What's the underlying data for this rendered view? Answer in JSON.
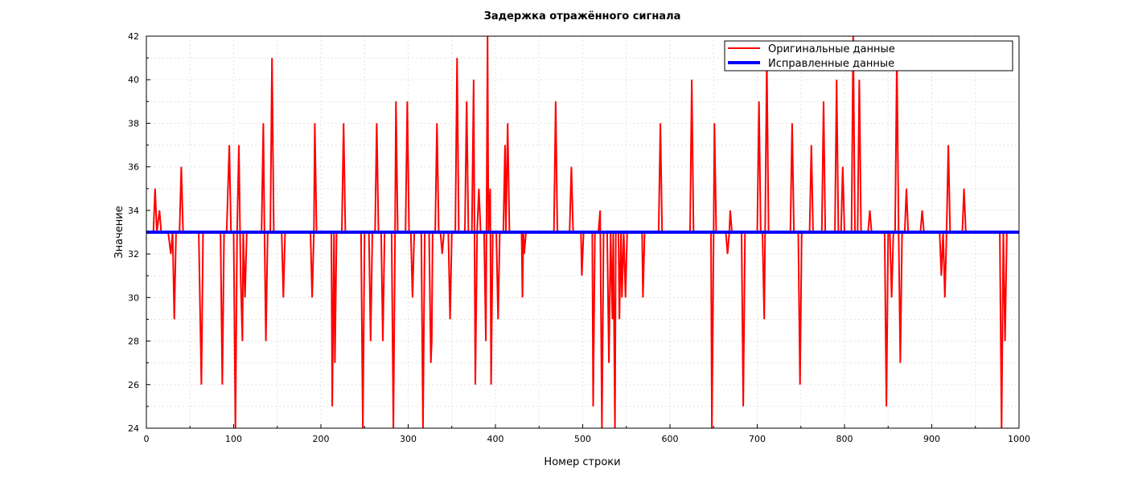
{
  "chart_data": {
    "type": "line",
    "title": "Задержка отражённого сигнала",
    "xlabel": "Номер строки",
    "ylabel": "Значение",
    "xlim": [
      0,
      1000
    ],
    "ylim": [
      24,
      42
    ],
    "xticks": [
      0,
      100,
      200,
      300,
      400,
      500,
      600,
      700,
      800,
      900,
      1000
    ],
    "yticks": [
      24,
      26,
      28,
      30,
      32,
      34,
      36,
      38,
      40,
      42
    ],
    "xtick_labels": [
      "0",
      "100",
      "200",
      "300",
      "400",
      "500",
      "600",
      "700",
      "800",
      "900",
      "1000"
    ],
    "ytick_labels": [
      "24",
      "26",
      "28",
      "30",
      "32",
      "34",
      "36",
      "38",
      "40",
      "42"
    ],
    "grid": true,
    "legend_position": "top-right",
    "series": [
      {
        "name": "Оригинальные данные",
        "color": "#ff0000",
        "points": [
          [
            0,
            33
          ],
          [
            8,
            33
          ],
          [
            10,
            35
          ],
          [
            12,
            33
          ],
          [
            15,
            34
          ],
          [
            17,
            33
          ],
          [
            25,
            33
          ],
          [
            28,
            32
          ],
          [
            30,
            33
          ],
          [
            32,
            29
          ],
          [
            34,
            33
          ],
          [
            38,
            33
          ],
          [
            40,
            36
          ],
          [
            42,
            33
          ],
          [
            60,
            33
          ],
          [
            63,
            26
          ],
          [
            65,
            33
          ],
          [
            85,
            33
          ],
          [
            87,
            26
          ],
          [
            89,
            33
          ],
          [
            92,
            33
          ],
          [
            95,
            37
          ],
          [
            97,
            33
          ],
          [
            100,
            33
          ],
          [
            102,
            24
          ],
          [
            104,
            33
          ],
          [
            106,
            37
          ],
          [
            108,
            31
          ],
          [
            110,
            28
          ],
          [
            111,
            33
          ],
          [
            113,
            30
          ],
          [
            115,
            33
          ],
          [
            132,
            33
          ],
          [
            134,
            38
          ],
          [
            135,
            34
          ],
          [
            137,
            28
          ],
          [
            139,
            33
          ],
          [
            142,
            33
          ],
          [
            144,
            41
          ],
          [
            146,
            33
          ],
          [
            155,
            33
          ],
          [
            157,
            30
          ],
          [
            159,
            33
          ],
          [
            188,
            33
          ],
          [
            190,
            30
          ],
          [
            192,
            33
          ],
          [
            193,
            38
          ],
          [
            195,
            33
          ],
          [
            212,
            33
          ],
          [
            213,
            25
          ],
          [
            215,
            33
          ],
          [
            216,
            27
          ],
          [
            218,
            33
          ],
          [
            224,
            33
          ],
          [
            226,
            38
          ],
          [
            228,
            33
          ],
          [
            246,
            33
          ],
          [
            248,
            24
          ],
          [
            250,
            33
          ],
          [
            255,
            33
          ],
          [
            257,
            28
          ],
          [
            259,
            33
          ],
          [
            262,
            33
          ],
          [
            264,
            38
          ],
          [
            266,
            33
          ],
          [
            269,
            33
          ],
          [
            271,
            28
          ],
          [
            273,
            33
          ],
          [
            281,
            33
          ],
          [
            283,
            24
          ],
          [
            285,
            33
          ],
          [
            286,
            39
          ],
          [
            288,
            33
          ],
          [
            297,
            33
          ],
          [
            299,
            39
          ],
          [
            301,
            33
          ],
          [
            303,
            33
          ],
          [
            305,
            30
          ],
          [
            307,
            33
          ],
          [
            315,
            33
          ],
          [
            317,
            24
          ],
          [
            319,
            33
          ],
          [
            324,
            33
          ],
          [
            326,
            27
          ],
          [
            327,
            28
          ],
          [
            328,
            33
          ],
          [
            331,
            33
          ],
          [
            333,
            38
          ],
          [
            335,
            33
          ],
          [
            337,
            33
          ],
          [
            339,
            32
          ],
          [
            341,
            33
          ],
          [
            346,
            33
          ],
          [
            348,
            29
          ],
          [
            350,
            33
          ],
          [
            354,
            33
          ],
          [
            356,
            41
          ],
          [
            358,
            33
          ],
          [
            365,
            33
          ],
          [
            367,
            39
          ],
          [
            369,
            33
          ],
          [
            373,
            33
          ],
          [
            375,
            40
          ],
          [
            377,
            26
          ],
          [
            379,
            33
          ],
          [
            381,
            35
          ],
          [
            383,
            33
          ],
          [
            387,
            33
          ],
          [
            389,
            28
          ],
          [
            391,
            42
          ],
          [
            392,
            33
          ],
          [
            394,
            35
          ],
          [
            395,
            26
          ],
          [
            397,
            33
          ],
          [
            401,
            33
          ],
          [
            403,
            29
          ],
          [
            405,
            33
          ],
          [
            409,
            33
          ],
          [
            411,
            37
          ],
          [
            412,
            33
          ],
          [
            414,
            38
          ],
          [
            416,
            33
          ],
          [
            430,
            33
          ],
          [
            431,
            30
          ],
          [
            432,
            33
          ],
          [
            433,
            32
          ],
          [
            435,
            33
          ],
          [
            467,
            33
          ],
          [
            469,
            39
          ],
          [
            471,
            33
          ],
          [
            485,
            33
          ],
          [
            487,
            36
          ],
          [
            489,
            33
          ],
          [
            498,
            33
          ],
          [
            499,
            31
          ],
          [
            501,
            33
          ],
          [
            511,
            33
          ],
          [
            512,
            25
          ],
          [
            514,
            33
          ],
          [
            518,
            33
          ],
          [
            520,
            34
          ],
          [
            522,
            24
          ],
          [
            524,
            33
          ],
          [
            528,
            33
          ],
          [
            530,
            27
          ],
          [
            532,
            33
          ],
          [
            534,
            29
          ],
          [
            535,
            33
          ],
          [
            537,
            24
          ],
          [
            538,
            33
          ],
          [
            541,
            33
          ],
          [
            542,
            29
          ],
          [
            544,
            33
          ],
          [
            545,
            30
          ],
          [
            547,
            33
          ],
          [
            549,
            30
          ],
          [
            551,
            33
          ],
          [
            568,
            33
          ],
          [
            569,
            30
          ],
          [
            571,
            33
          ],
          [
            587,
            33
          ],
          [
            589,
            38
          ],
          [
            591,
            33
          ],
          [
            623,
            33
          ],
          [
            625,
            40
          ],
          [
            627,
            33
          ],
          [
            647,
            33
          ],
          [
            648,
            24
          ],
          [
            650,
            33
          ],
          [
            651,
            38
          ],
          [
            653,
            33
          ],
          [
            664,
            33
          ],
          [
            666,
            32
          ],
          [
            668,
            33
          ],
          [
            669,
            34
          ],
          [
            671,
            33
          ],
          [
            682,
            33
          ],
          [
            684,
            25
          ],
          [
            686,
            33
          ],
          [
            700,
            33
          ],
          [
            702,
            39
          ],
          [
            704,
            33
          ],
          [
            706,
            33
          ],
          [
            708,
            29
          ],
          [
            709,
            33
          ],
          [
            711,
            41
          ],
          [
            713,
            33
          ],
          [
            738,
            33
          ],
          [
            740,
            38
          ],
          [
            742,
            33
          ],
          [
            747,
            33
          ],
          [
            749,
            26
          ],
          [
            751,
            33
          ],
          [
            760,
            33
          ],
          [
            762,
            37
          ],
          [
            764,
            33
          ],
          [
            774,
            33
          ],
          [
            776,
            39
          ],
          [
            778,
            33
          ],
          [
            789,
            33
          ],
          [
            791,
            40
          ],
          [
            793,
            33
          ],
          [
            796,
            33
          ],
          [
            798,
            36
          ],
          [
            800,
            33
          ],
          [
            808,
            33
          ],
          [
            810,
            42
          ],
          [
            812,
            33
          ],
          [
            815,
            33
          ],
          [
            817,
            40
          ],
          [
            819,
            33
          ],
          [
            827,
            33
          ],
          [
            829,
            34
          ],
          [
            831,
            33
          ],
          [
            846,
            33
          ],
          [
            848,
            25
          ],
          [
            850,
            33
          ],
          [
            852,
            33
          ],
          [
            854,
            30
          ],
          [
            856,
            33
          ],
          [
            858,
            33
          ],
          [
            860,
            41
          ],
          [
            862,
            33
          ],
          [
            864,
            27
          ],
          [
            866,
            33
          ],
          [
            869,
            33
          ],
          [
            871,
            35
          ],
          [
            873,
            33
          ],
          [
            887,
            33
          ],
          [
            889,
            34
          ],
          [
            891,
            33
          ],
          [
            909,
            33
          ],
          [
            911,
            31
          ],
          [
            913,
            33
          ],
          [
            915,
            30
          ],
          [
            917,
            33
          ],
          [
            919,
            37
          ],
          [
            921,
            33
          ],
          [
            935,
            33
          ],
          [
            937,
            35
          ],
          [
            939,
            33
          ],
          [
            978,
            33
          ],
          [
            980,
            24
          ],
          [
            982,
            33
          ],
          [
            984,
            28
          ],
          [
            986,
            33
          ],
          [
            1000,
            33
          ]
        ]
      },
      {
        "name": "Исправленные данные",
        "color": "#0000ff",
        "points": [
          [
            0,
            33
          ],
          [
            1000,
            33
          ]
        ]
      }
    ]
  }
}
